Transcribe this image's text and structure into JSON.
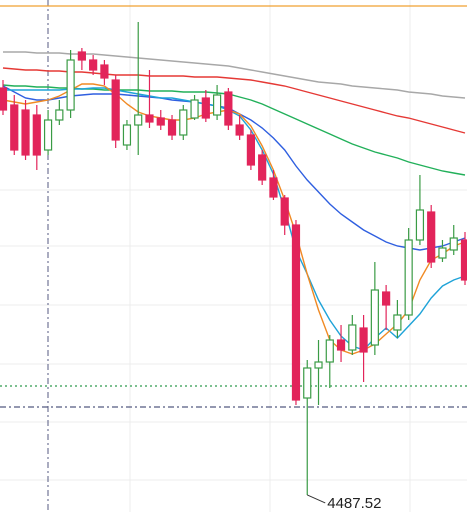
{
  "chart_data": {
    "type": "candlestick",
    "categories": [
      null,
      null,
      null,
      null,
      null,
      null,
      null,
      null,
      null,
      null,
      null,
      null,
      null,
      null,
      null,
      null,
      null,
      null,
      null,
      null,
      null,
      null,
      null,
      null,
      null,
      null,
      null,
      null,
      null,
      null,
      null,
      null,
      null,
      null,
      null,
      null,
      null,
      null,
      null,
      null,
      null,
      null
    ],
    "open": [
      4691,
      4682.5,
      4680,
      4677.5,
      4660,
      4675,
      4680,
      4709,
      4705,
      4702.5,
      4695,
      4662.5,
      4672.5,
      4677.5,
      4676,
      4675,
      4667.5,
      4676,
      4686,
      4677.5,
      4689,
      4672.5,
      4667.5,
      4657.5,
      4646,
      4636,
      4622.5,
      4536,
      4551,
      4554,
      4565,
      4560,
      4571,
      4562.5,
      4589,
      4570,
      4577.5,
      4615,
      4629,
      4606,
      4610,
      4615
    ],
    "high": [
      4695,
      4687.5,
      4685,
      4682.5,
      4680,
      4685,
      4710,
      4711,
      4707.5,
      4705,
      4697.5,
      4675,
      4724,
      4700,
      4680,
      4677.5,
      4682.5,
      4687.5,
      4690,
      4692.5,
      4691,
      4677.5,
      4670,
      4660,
      4650,
      4637.5,
      4625,
      4555,
      4565,
      4567.5,
      4572.5,
      4577.5,
      4577.5,
      4604,
      4592.5,
      4585,
      4621,
      4647.5,
      4632.5,
      4615,
      4622.5,
      4619
    ],
    "low": [
      4677.5,
      4657.5,
      4655,
      4650,
      4657.5,
      4672.5,
      4676,
      4700,
      4697.5,
      4692.5,
      4661,
      4660,
      4657.5,
      4671,
      4670,
      4665,
      4665,
      4675,
      4674,
      4675,
      4670,
      4665,
      4650,
      4642.5,
      4635,
      4617.5,
      4532.5,
      4487.52,
      4532.5,
      4541,
      4554,
      4557.5,
      4544,
      4557.5,
      4570,
      4566,
      4575,
      4612.5,
      4601,
      4604,
      4607.5,
      4592.5
    ],
    "close": [
      4680,
      4660,
      4657.5,
      4657.5,
      4675,
      4680,
      4705,
      4705,
      4700,
      4696,
      4665,
      4672.5,
      4677.5,
      4674,
      4672.5,
      4667.5,
      4680,
      4685,
      4676,
      4687.5,
      4672.5,
      4667.5,
      4652.5,
      4645,
      4636.5,
      4622.5,
      4535,
      4551,
      4554,
      4565,
      4560,
      4572.5,
      4559,
      4590,
      4582.5,
      4577.5,
      4615,
      4630,
      4604,
      4611,
      4616,
      4595
    ],
    "up_color": "#3a9b45",
    "down_color": "#e2245a",
    "lines": [
      {
        "color": "#a8a8a8",
        "values": [
          4709,
          4709,
          4709,
          4708.5,
          4708.5,
          4708.5,
          4708,
          4708,
          4708,
          4707.5,
          4707,
          4706.5,
          4706,
          4705.5,
          4705,
          4704.5,
          4704,
          4703.5,
          4703,
          4702.5,
          4702,
          4701,
          4700,
          4699,
          4698,
          4697,
          4696,
          4695,
          4694,
          4693.5,
          4693,
          4692,
          4691.5,
          4691,
          4690.5,
          4690,
          4689,
          4688.5,
          4688,
          4687,
          4686.5,
          4686
        ]
      },
      {
        "color": "#e53935",
        "values": [
          4701,
          4700.5,
          4700,
          4700,
          4699.5,
          4699.5,
          4699,
          4699,
          4698.5,
          4698,
          4697.5,
          4697.5,
          4697.5,
          4697,
          4697,
          4697,
          4697,
          4696.5,
          4696.5,
          4696.5,
          4696,
          4695.5,
          4695,
          4694,
          4693,
          4692,
          4690.5,
          4689,
          4687.5,
          4686,
          4684.5,
          4683,
          4681.5,
          4680,
          4678.5,
          4677,
          4676,
          4674.5,
          4673,
          4671.5,
          4670,
          4668.5
        ]
      },
      {
        "color": "#22b05a",
        "values": [
          4692.5,
          4692,
          4692,
          4691.5,
          4691.5,
          4691,
          4691,
          4690.5,
          4690.5,
          4690,
          4690,
          4690,
          4690,
          4689.5,
          4689.5,
          4689.5,
          4689,
          4689,
          4689,
          4688.5,
          4688,
          4686.5,
          4685,
          4683,
          4680.5,
          4678,
          4675.5,
          4673,
          4670.5,
          4668,
          4665.5,
          4663,
          4661,
          4659,
          4657.5,
          4656,
          4654,
          4652.5,
          4651,
          4649.5,
          4648.5,
          4647.5
        ]
      },
      {
        "color": "#2f5fe0",
        "values": [
          4692,
          4689,
          4686,
          4685,
          4685,
          4686,
          4687,
          4687.5,
          4688,
          4688,
          4688,
          4687.5,
          4687,
          4686.5,
          4686,
          4685,
          4684.5,
          4684,
          4683,
          4682,
          4681,
          4678,
          4675,
          4671,
          4666,
          4660,
          4652,
          4645,
          4639,
          4633,
          4628,
          4624,
          4620,
          4617,
          4614,
          4612,
          4611,
          4610,
          4611,
          4612,
          4614,
          4616
        ]
      },
      {
        "color": "#1fa3d8",
        "values": [
          4690,
          4690,
          4690,
          4690,
          4690,
          4690,
          4690.5,
          4690.5,
          4691,
          4691,
          4690,
          4689,
          4688,
          4687,
          4686,
          4686,
          4685,
          4684,
          4683,
          4682,
          4680,
          4677,
          4670,
          4660,
          4648,
          4630,
          4610,
          4598,
          4585,
          4575,
          4567,
          4562,
          4560,
          4566,
          4571,
          4566,
          4572,
          4578,
          4586,
          4592,
          4595,
          4597
        ]
      },
      {
        "color": "#f08a24",
        "values": [
          4685,
          4684,
          4683,
          4684,
          4685,
          4687,
          4690,
          4693,
          4693,
          4692,
          4688,
          4683,
          4679,
          4677,
          4676,
          4675,
          4675,
          4676,
          4678,
          4679,
          4680,
          4678,
          4672,
          4662,
          4650,
          4635,
          4618,
          4598,
          4580,
          4565,
          4560,
          4558,
          4560,
          4563,
          4568,
          4573,
          4580,
          4595,
          4605,
          4608,
          4612,
          4614
        ]
      }
    ],
    "levels": [
      {
        "value": 4732,
        "color": "#f0a030",
        "style": "solid"
      },
      {
        "value": 4542,
        "color": "#2e9b4e",
        "style": "dotted"
      },
      {
        "value": 4531.5,
        "color": "#555a80",
        "style": "dashdot"
      }
    ],
    "ylim": [
      4479,
      4735
    ]
  }
}
